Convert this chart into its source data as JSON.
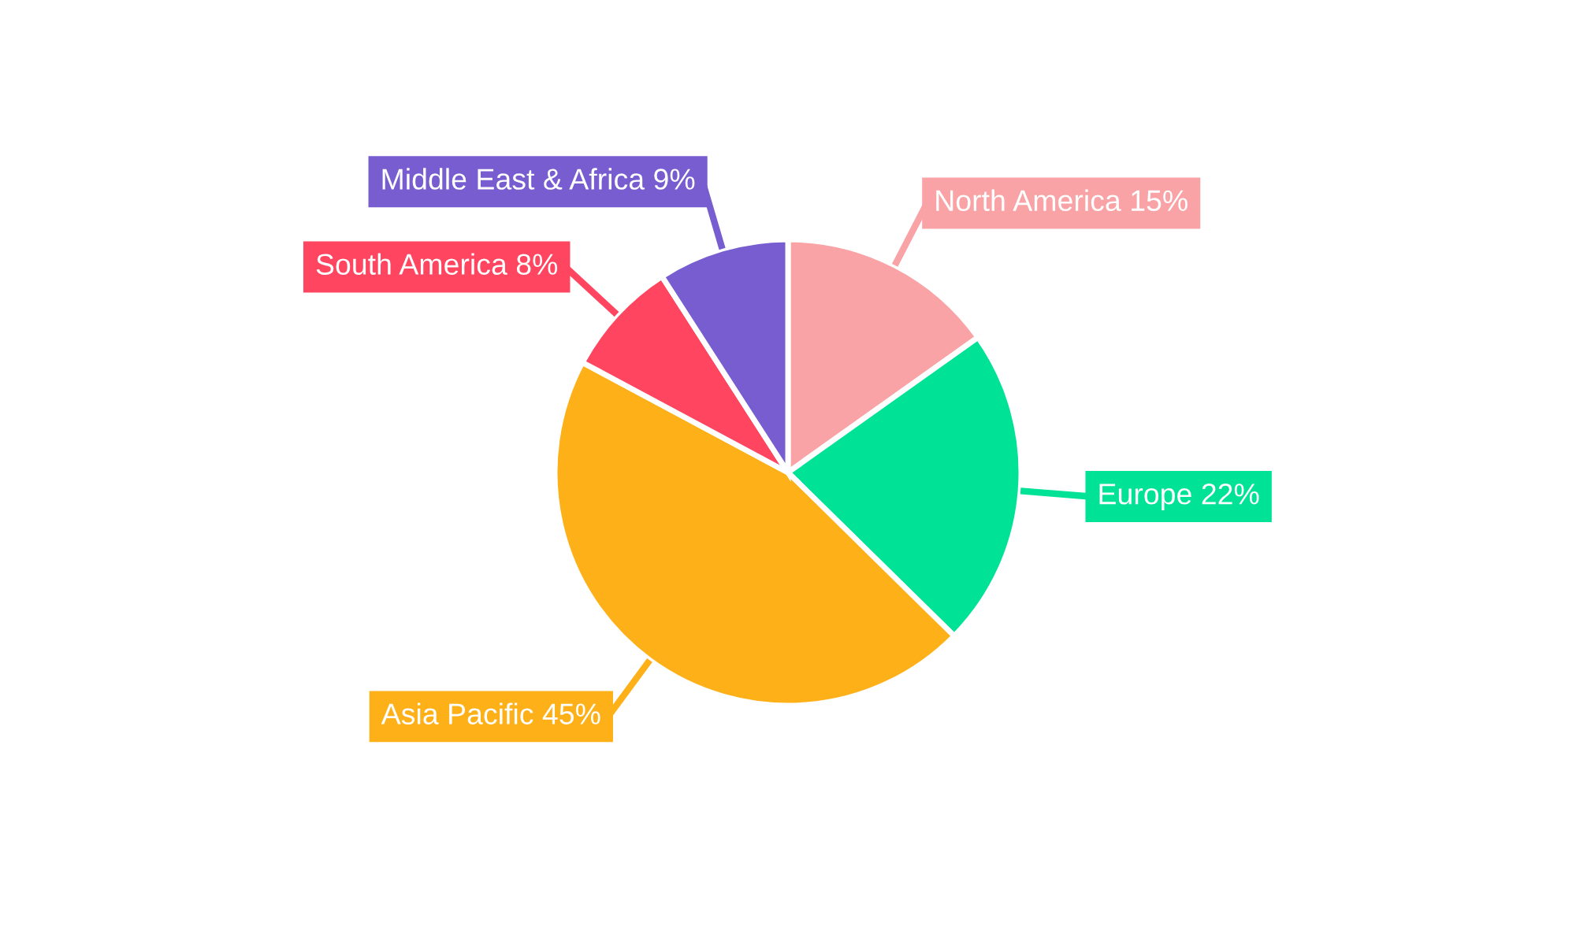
{
  "chart_data": {
    "type": "pie",
    "categories": [
      "North America",
      "Europe",
      "Asia Pacific",
      "South America",
      "Middle East & Africa"
    ],
    "values": [
      15,
      22,
      45,
      8,
      9
    ],
    "value_labels": [
      "15%",
      "22%",
      "45%",
      "8%",
      "9%"
    ],
    "colors": [
      "#f9a3a6",
      "#00e396",
      "#feb019",
      "#ff4560",
      "#775dd0"
    ],
    "legend": false
  }
}
